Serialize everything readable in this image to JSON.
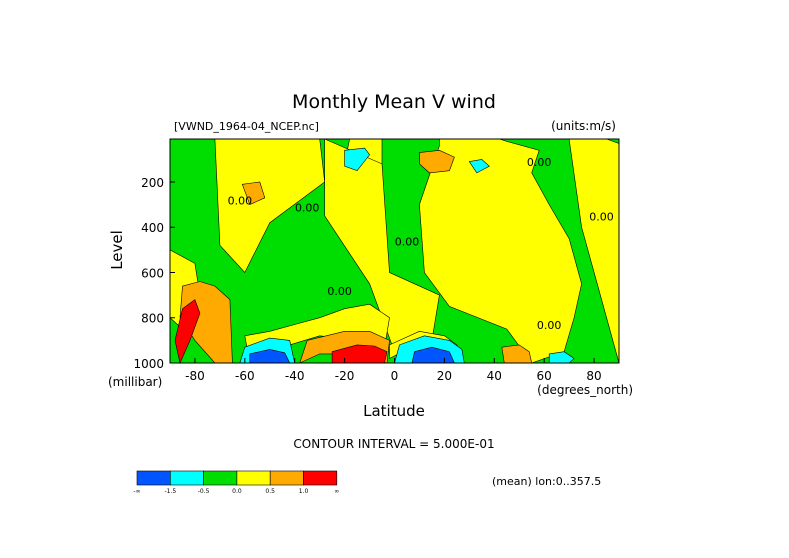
{
  "chart_data": {
    "type": "heatmap",
    "title": "Monthly Mean V wind",
    "dataset_label": "[VWND_1964-04_NCEP.nc]",
    "units_label": "(units:m/s)",
    "xlabel": "Latitude",
    "x_unit_label": "(degrees_north)",
    "ylabel": "Level",
    "y_unit_label": "(millibar)",
    "xlim": [
      -90,
      90
    ],
    "ylim": [
      1000,
      10
    ],
    "x_ticks": [
      {
        "value": -80,
        "label": "-80"
      },
      {
        "value": -60,
        "label": "-60"
      },
      {
        "value": -40,
        "label": "-40"
      },
      {
        "value": -20,
        "label": "-20"
      },
      {
        "value": 0,
        "label": "0"
      },
      {
        "value": 20,
        "label": "20"
      },
      {
        "value": 40,
        "label": "40"
      },
      {
        "value": 60,
        "label": "60"
      },
      {
        "value": 80,
        "label": "80"
      }
    ],
    "y_ticks": [
      {
        "value": 200,
        "label": "200"
      },
      {
        "value": 400,
        "label": "400"
      },
      {
        "value": 600,
        "label": "600"
      },
      {
        "value": 800,
        "label": "800"
      },
      {
        "value": 1000,
        "label": "1000"
      }
    ],
    "contour_interval_label": "CONTOUR INTERVAL = 5.000E-01",
    "mean_label": "(mean) lon:0..357.5",
    "contour_labels": [
      {
        "text": "0.00",
        "x": 58,
        "y": 130
      },
      {
        "text": "0.00",
        "x": -62,
        "y": 300
      },
      {
        "text": "0.00",
        "x": -35,
        "y": 330
      },
      {
        "text": "0.00",
        "x": 5,
        "y": 480
      },
      {
        "text": "0.00",
        "x": -22,
        "y": 700
      },
      {
        "text": "0.00",
        "x": 83,
        "y": 370
      },
      {
        "text": "0.00",
        "x": 62,
        "y": 850
      }
    ],
    "colorbar": {
      "colors": [
        "#0055ff",
        "#00ffff",
        "#00dd00",
        "#ffff00",
        "#ffaa00",
        "#ff0000"
      ],
      "labels": [
        "-∞",
        "-1.5",
        "-0.5",
        "0.0",
        "0.5",
        "1.0",
        "∞"
      ]
    },
    "regions": [
      {
        "color": "#ffff00",
        "x": [
          -18,
          -5,
          -5,
          -20
        ],
        "y": [
          10,
          10,
          120,
          120
        ]
      },
      {
        "color": "#ffff00",
        "x": [
          -72,
          -30,
          -28,
          -50,
          -60,
          -70
        ],
        "y": [
          10,
          10,
          200,
          380,
          600,
          480
        ]
      },
      {
        "color": "#ffff00",
        "x": [
          -28,
          -5,
          -2,
          18,
          15,
          0,
          -10,
          -28
        ],
        "y": [
          10,
          120,
          600,
          700,
          900,
          950,
          650,
          350
        ]
      },
      {
        "color": "#ffff00",
        "x": [
          18,
          42,
          45,
          58,
          55,
          62,
          70,
          75,
          72,
          68,
          55,
          45,
          22,
          12,
          10,
          18
        ],
        "y": [
          10,
          10,
          20,
          60,
          160,
          300,
          450,
          650,
          800,
          950,
          1000,
          850,
          750,
          600,
          300,
          40
        ]
      },
      {
        "color": "#ffff00",
        "x": [
          70,
          85,
          90,
          90,
          80,
          75
        ],
        "y": [
          10,
          10,
          30,
          1000,
          600,
          400
        ]
      },
      {
        "color": "#ffff00",
        "x": [
          -90,
          -80,
          -78,
          -85,
          -90
        ],
        "y": [
          500,
          560,
          700,
          850,
          800
        ]
      },
      {
        "color": "#ffff00",
        "x": [
          -60,
          -50,
          -40,
          -30,
          -20,
          -10,
          -2,
          -5,
          -15,
          -30,
          -45,
          -58
        ],
        "y": [
          880,
          860,
          830,
          800,
          760,
          740,
          800,
          1000,
          900,
          880,
          930,
          1000
        ]
      },
      {
        "color": "#ffff00",
        "x": [
          -2,
          10,
          20,
          25,
          28,
          20,
          5,
          -2
        ],
        "y": [
          920,
          860,
          880,
          920,
          1000,
          960,
          940,
          980
        ]
      },
      {
        "color": "#ffaa00",
        "x": [
          -61,
          -54,
          -52,
          -58
        ],
        "y": [
          210,
          200,
          270,
          300
        ]
      },
      {
        "color": "#ffaa00",
        "x": [
          10,
          18,
          24,
          22,
          14,
          10
        ],
        "y": [
          70,
          60,
          90,
          150,
          160,
          120
        ]
      },
      {
        "color": "#ffaa00",
        "x": [
          -85,
          -78,
          -72,
          -66,
          -65,
          -72,
          -80,
          -86
        ],
        "y": [
          660,
          640,
          660,
          720,
          1000,
          1000,
          900,
          800
        ]
      },
      {
        "color": "#ffaa00",
        "x": [
          -35,
          -20,
          -10,
          -2,
          -3,
          -15,
          -30,
          -38
        ],
        "y": [
          900,
          860,
          860,
          900,
          1000,
          960,
          960,
          1000
        ]
      },
      {
        "color": "#ffaa00",
        "x": [
          43,
          50,
          54,
          55,
          44
        ],
        "y": [
          930,
          920,
          950,
          1000,
          1000
        ]
      },
      {
        "color": "#ff0000",
        "x": [
          -85,
          -80,
          -78,
          -82,
          -86,
          -88
        ],
        "y": [
          760,
          720,
          780,
          900,
          1000,
          900
        ]
      },
      {
        "color": "#ff0000",
        "x": [
          -25,
          -15,
          -8,
          -3,
          -4,
          -25
        ],
        "y": [
          950,
          920,
          925,
          950,
          1000,
          1000
        ]
      },
      {
        "color": "#00ffff",
        "x": [
          -20,
          -12,
          -10,
          -15,
          -20
        ],
        "y": [
          60,
          50,
          80,
          150,
          130
        ]
      },
      {
        "color": "#00ffff",
        "x": [
          30,
          35,
          38,
          33
        ],
        "y": [
          110,
          100,
          130,
          160
        ]
      },
      {
        "color": "#00ffff",
        "x": [
          -60,
          -50,
          -42,
          -40,
          -62
        ],
        "y": [
          930,
          890,
          900,
          1000,
          1000
        ]
      },
      {
        "color": "#00ffff",
        "x": [
          2,
          12,
          22,
          27,
          28,
          0
        ],
        "y": [
          920,
          880,
          900,
          940,
          1000,
          1000
        ]
      },
      {
        "color": "#00ffff",
        "x": [
          62,
          68,
          72,
          70,
          62
        ],
        "y": [
          960,
          950,
          980,
          1000,
          1000
        ]
      },
      {
        "color": "#0055ff",
        "x": [
          -58,
          -50,
          -44,
          -42,
          -58
        ],
        "y": [
          960,
          940,
          955,
          1000,
          1000
        ]
      },
      {
        "color": "#0055ff",
        "x": [
          8,
          15,
          22,
          24,
          7
        ],
        "y": [
          950,
          930,
          950,
          1000,
          1000
        ]
      }
    ]
  }
}
